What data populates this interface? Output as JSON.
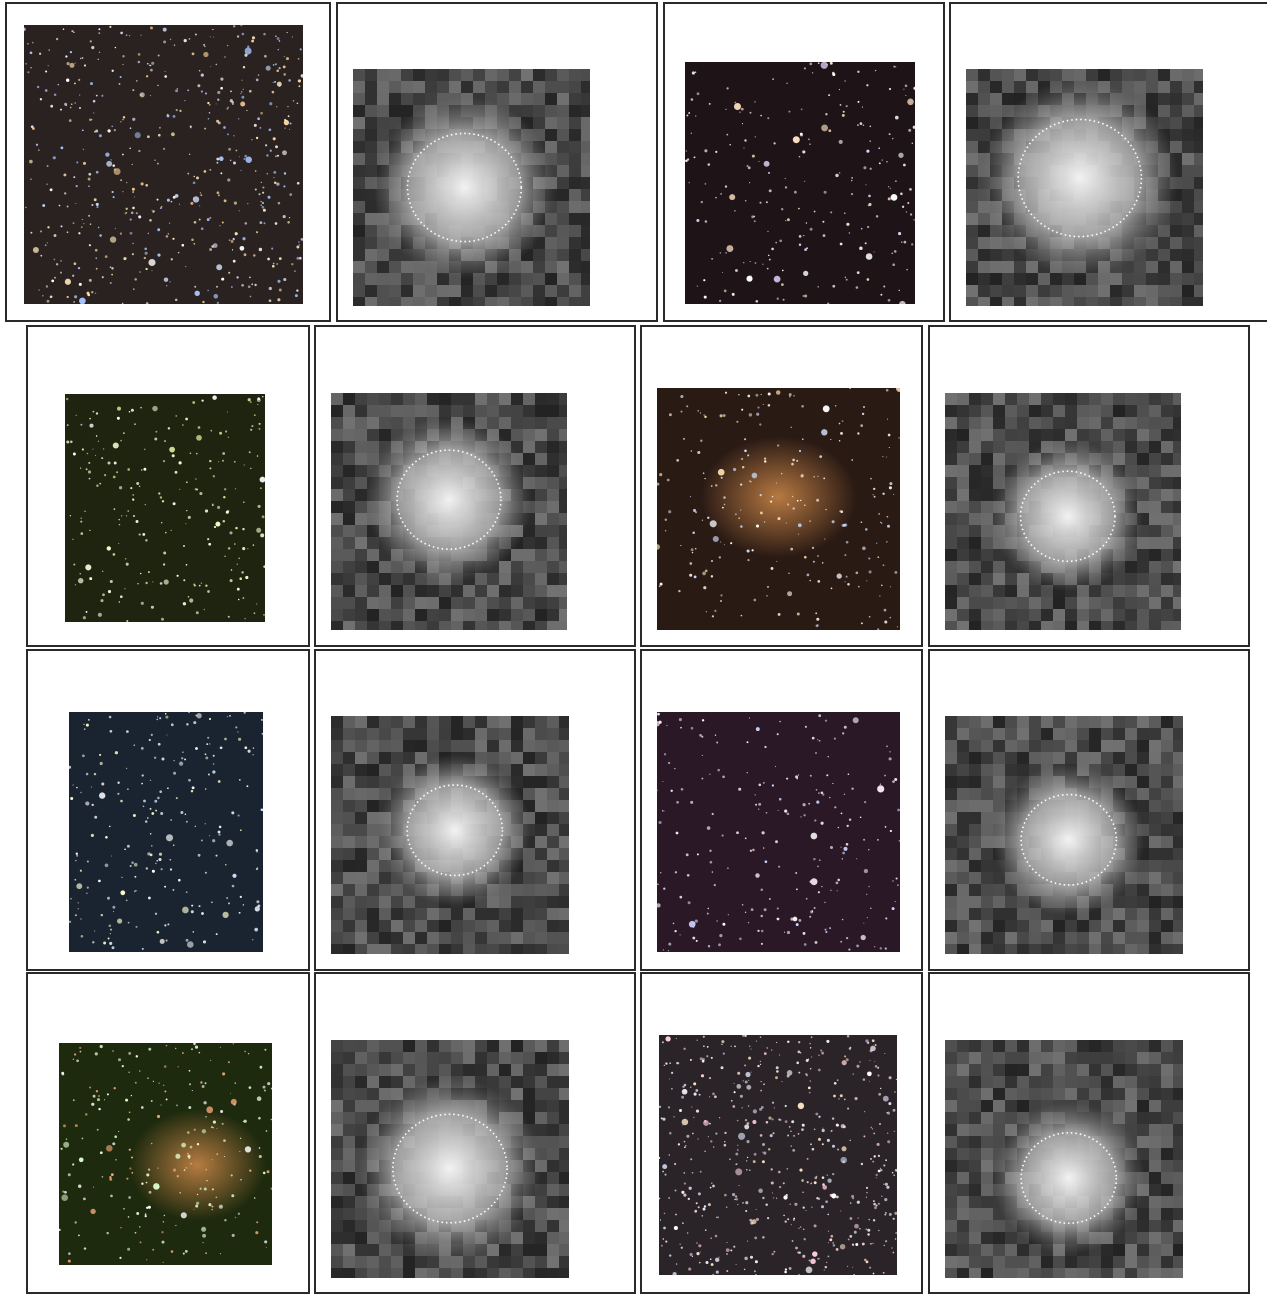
{
  "figure": {
    "rows": 4,
    "columns": 4,
    "panels": [
      {
        "kind": "optical",
        "theme": "dense-globular",
        "bg": "#2a2220"
      },
      {
        "kind": "density-map",
        "blob": "center"
      },
      {
        "kind": "optical",
        "theme": "sparse-field",
        "bg": "#1e1418"
      },
      {
        "kind": "density-map",
        "blob": "center-elongated"
      },
      {
        "kind": "optical",
        "theme": "green-cluster",
        "bg": "#1e2410"
      },
      {
        "kind": "density-map",
        "blob": "faint-center"
      },
      {
        "kind": "optical",
        "theme": "nebula-cluster",
        "bg": "#2a1a14"
      },
      {
        "kind": "density-map",
        "blob": "center-bright"
      },
      {
        "kind": "optical",
        "theme": "blue-field",
        "bg": "#1a2430"
      },
      {
        "kind": "density-map",
        "blob": "center-right"
      },
      {
        "kind": "optical",
        "theme": "purple-field",
        "bg": "#2a1826"
      },
      {
        "kind": "density-map",
        "blob": "center-bright"
      },
      {
        "kind": "optical",
        "theme": "green-red-cluster",
        "bg": "#1e2a0e"
      },
      {
        "kind": "density-map",
        "blob": "center-large"
      },
      {
        "kind": "optical",
        "theme": "dense-field",
        "bg": "#2a2428"
      },
      {
        "kind": "density-map",
        "blob": "low-center"
      }
    ]
  },
  "colors": {
    "border": "#2a2a2a",
    "background": "#ffffff",
    "contour": "#ffffff"
  }
}
